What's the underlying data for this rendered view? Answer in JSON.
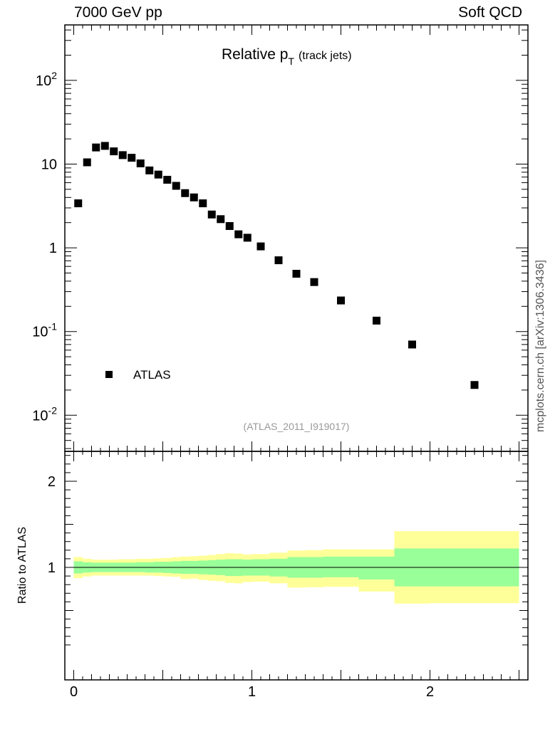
{
  "header": {
    "left_label": "7000 GeV pp",
    "right_label": "Soft QCD"
  },
  "chart_data": [
    {
      "type": "scatter",
      "panel": "main",
      "title_main": "Relative p",
      "title_sub": "T",
      "title_suffix": "(track jets)",
      "yscale": "log",
      "ylim": [
        0.004,
        400
      ],
      "xlim": [
        -0.05,
        2.55
      ],
      "ytick_labels": [
        {
          "base": "10",
          "exp": "-2",
          "value": 0.01
        },
        {
          "base": "10",
          "exp": "-1",
          "value": 0.1
        },
        {
          "base": "1",
          "exp": "",
          "value": 1
        },
        {
          "base": "10",
          "exp": "",
          "value": 10
        },
        {
          "base": "10",
          "exp": "2",
          "value": 100
        }
      ],
      "legend": {
        "label": "ATLAS",
        "placement": "lower-left"
      },
      "analysis_label": "(ATLAS_2011_I919017)",
      "side_label": "mcplots.cern.ch [arXiv:1306.3436]",
      "marker_color": "#000000",
      "series": [
        {
          "name": "ATLAS",
          "x": [
            0.025,
            0.075,
            0.125,
            0.175,
            0.225,
            0.275,
            0.325,
            0.375,
            0.425,
            0.475,
            0.525,
            0.575,
            0.625,
            0.675,
            0.725,
            0.775,
            0.825,
            0.875,
            0.925,
            0.975,
            1.05,
            1.15,
            1.25,
            1.35,
            1.5,
            1.7,
            1.9,
            2.25
          ],
          "y": [
            3.4,
            10.5,
            15.8,
            16.5,
            14.2,
            12.8,
            11.9,
            10.2,
            8.4,
            7.5,
            6.5,
            5.5,
            4.5,
            4.0,
            3.4,
            2.5,
            2.2,
            1.82,
            1.45,
            1.32,
            1.04,
            0.71,
            0.49,
            0.39,
            0.235,
            0.135,
            0.07,
            0.023
          ]
        }
      ]
    },
    {
      "type": "area",
      "panel": "ratio",
      "ylabel": "Ratio to ATLAS",
      "ylim": [
        0.5,
        2.5
      ],
      "xlim": [
        -0.05,
        2.55
      ],
      "ytick_labels": [
        {
          "label": "1",
          "value": 1
        },
        {
          "label": "2",
          "value": 2
        }
      ],
      "xtick_labels": [
        {
          "label": "0",
          "value": 0
        },
        {
          "label": "1",
          "value": 1
        },
        {
          "label": "2",
          "value": 2
        }
      ],
      "reference_line": 1,
      "band_colors": {
        "outer": "#ffff99",
        "inner": "#99ff99"
      },
      "bands": {
        "edges": [
          0.0,
          0.05,
          0.1,
          0.15,
          0.2,
          0.25,
          0.3,
          0.35,
          0.4,
          0.45,
          0.5,
          0.55,
          0.6,
          0.65,
          0.7,
          0.75,
          0.8,
          0.85,
          0.9,
          0.95,
          1.0,
          1.1,
          1.2,
          1.3,
          1.4,
          1.6,
          1.8,
          2.0,
          2.5
        ],
        "outer_low": [
          0.875,
          0.895,
          0.905,
          0.905,
          0.905,
          0.905,
          0.905,
          0.905,
          0.905,
          0.9,
          0.895,
          0.89,
          0.865,
          0.87,
          0.855,
          0.845,
          0.84,
          0.82,
          0.815,
          0.83,
          0.835,
          0.815,
          0.765,
          0.77,
          0.775,
          0.72,
          0.58,
          0.585,
          0.59
        ],
        "outer_high": [
          1.12,
          1.1,
          1.09,
          1.09,
          1.09,
          1.095,
          1.095,
          1.1,
          1.1,
          1.105,
          1.11,
          1.12,
          1.125,
          1.13,
          1.135,
          1.145,
          1.155,
          1.165,
          1.16,
          1.15,
          1.155,
          1.17,
          1.195,
          1.2,
          1.21,
          1.21,
          1.42,
          1.42,
          1.42
        ],
        "inner_low": [
          0.93,
          0.94,
          0.945,
          0.945,
          0.945,
          0.945,
          0.945,
          0.945,
          0.94,
          0.94,
          0.935,
          0.93,
          0.925,
          0.925,
          0.92,
          0.915,
          0.91,
          0.9,
          0.9,
          0.905,
          0.905,
          0.895,
          0.88,
          0.88,
          0.885,
          0.86,
          0.78,
          0.78,
          0.78
        ],
        "inner_high": [
          1.07,
          1.06,
          1.055,
          1.055,
          1.055,
          1.055,
          1.055,
          1.06,
          1.06,
          1.065,
          1.065,
          1.07,
          1.075,
          1.075,
          1.08,
          1.085,
          1.09,
          1.095,
          1.095,
          1.09,
          1.095,
          1.1,
          1.12,
          1.12,
          1.125,
          1.125,
          1.22,
          1.22,
          1.22
        ]
      }
    }
  ]
}
